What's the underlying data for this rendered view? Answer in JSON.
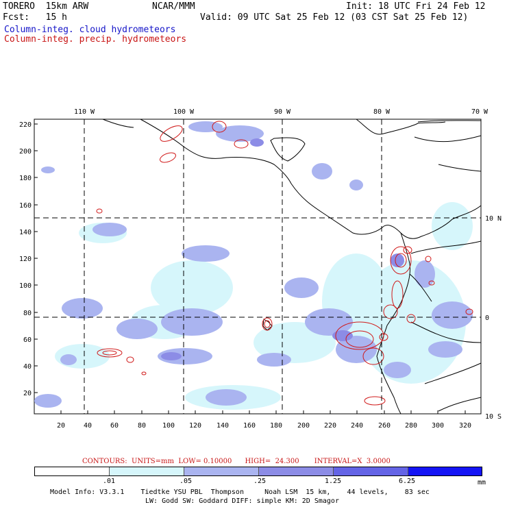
{
  "header": {
    "model": "TORERO  15km ARW",
    "center": "NCAR/MMM",
    "init": "Init: 18 UTC Fri 24 Feb 12",
    "fcst": "Fcst:   15 h",
    "valid": "Valid: 09 UTC Sat 25 Feb 12 (03 CST Sat 25 Feb 12)",
    "line_blue": "Column-integ. cloud hydrometeors",
    "line_red": "Column-integ. precip. hydrometeors"
  },
  "map": {
    "lon_labels": [
      "110 W",
      "100 W",
      "90 W",
      "80 W",
      "70 W"
    ],
    "lat_labels": [
      "10 N",
      "0",
      "10 S"
    ],
    "x_ticks": [
      "20",
      "40",
      "60",
      "80",
      "100",
      "120",
      "140",
      "160",
      "180",
      "200",
      "220",
      "240",
      "260",
      "280",
      "300",
      "320"
    ],
    "y_ticks": [
      "220",
      "200",
      "180",
      "160",
      "140",
      "120",
      "100",
      "80",
      "60",
      "40",
      "20"
    ]
  },
  "contours_line": "CONTOURS:  UNITS=mm  LOW= 0.10000      HIGH=  24.300       INTERVAL=X  3.0000",
  "legend": {
    "colors": [
      "#ffffff",
      "#d6f6fb",
      "#aab4f0",
      "#8c8ce6",
      "#6464e6",
      "#3c3cf0",
      "#1414f5"
    ],
    "labels": [
      ".01",
      ".05",
      ".25",
      "1.25",
      "6.25"
    ],
    "unit": "mm"
  },
  "footer": {
    "line1": "Model Info: V3.3.1    Tiedtke YSU PBL  Thompson     Noah LSM  15 km,    44 levels,    83 sec",
    "line2": "LW: Godd SW: Goddard DIFF: simple KM: 2D Smagor"
  }
}
